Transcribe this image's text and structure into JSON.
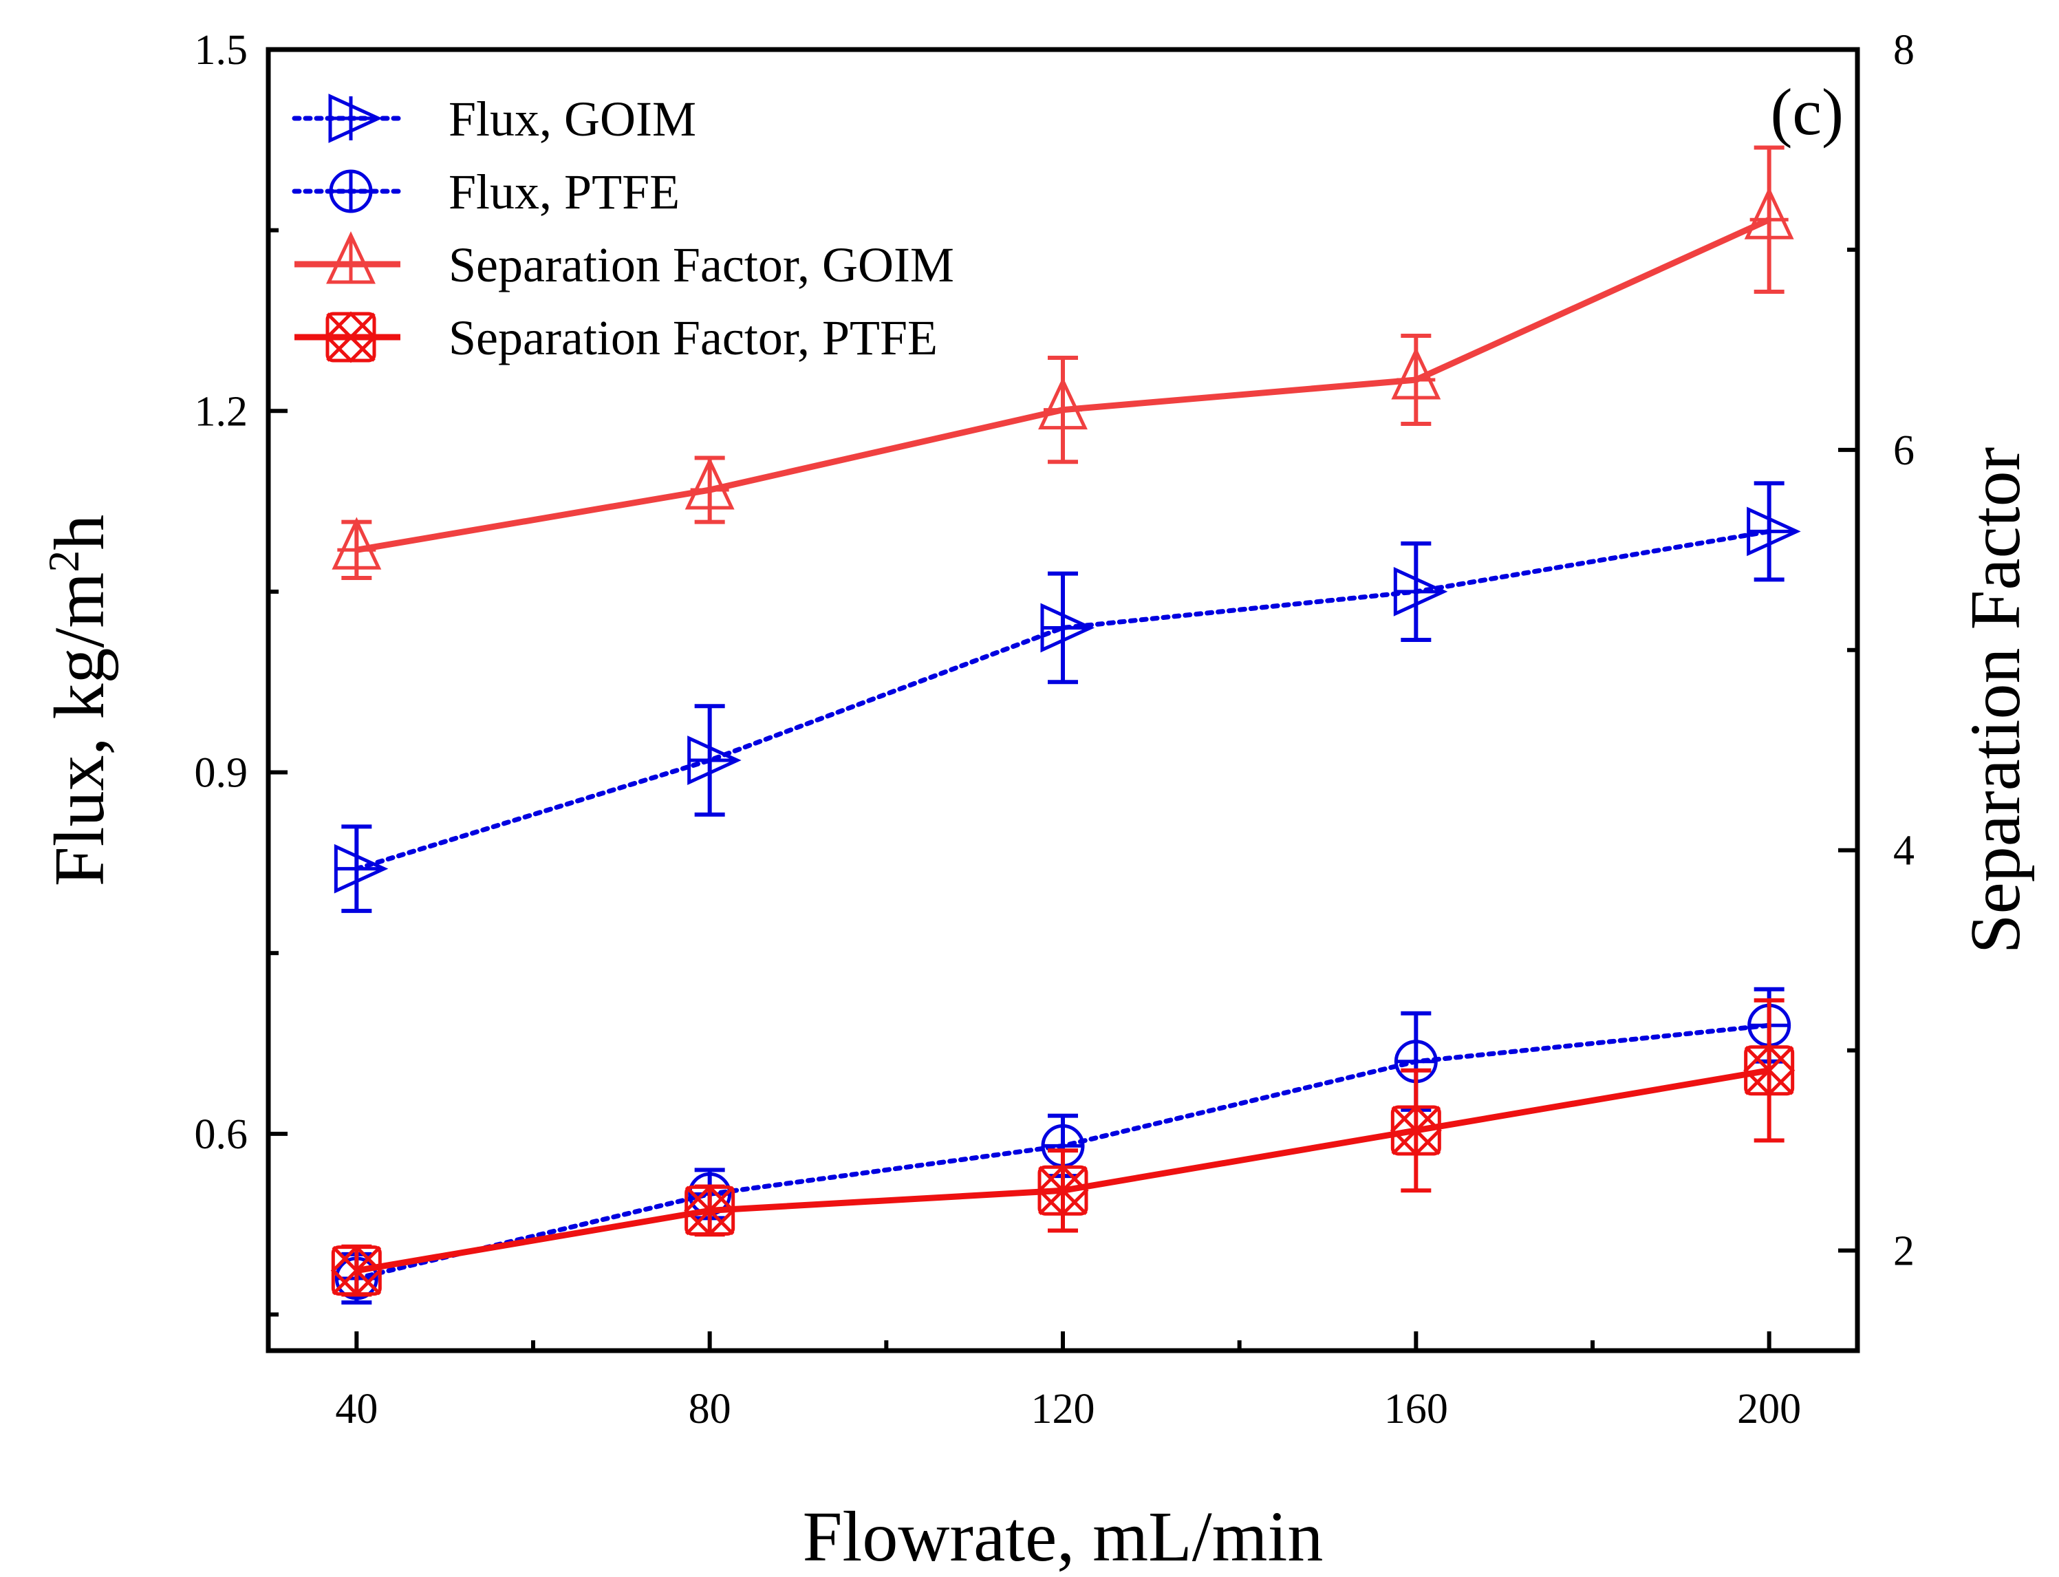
{
  "chart_data": {
    "type": "line",
    "panel_label": "(c)",
    "xlabel": "Flowrate, mL/min",
    "ylabel_left": {
      "main": "Flux, kg/m",
      "sup": "2",
      "tail": "h"
    },
    "ylabel_right": "Separation Factor",
    "xlim": [
      30,
      210
    ],
    "ylim_left": [
      0.42,
      1.5
    ],
    "ylim_right": [
      1.5,
      8
    ],
    "x_ticks": [
      40,
      80,
      120,
      160,
      200
    ],
    "x_tick_labels": [
      "40",
      "80",
      "120",
      "160",
      "200"
    ],
    "x_minor_ticks": [
      60,
      100,
      140,
      180
    ],
    "y_left_ticks": [
      0.6,
      0.9,
      1.2,
      1.5
    ],
    "y_left_tick_labels": [
      "0.6",
      "0.9",
      "1.2",
      "1.5"
    ],
    "y_left_minor_ticks": [
      0.45,
      0.75,
      1.05,
      1.35
    ],
    "y_right_ticks": [
      2,
      4,
      6,
      8
    ],
    "y_right_tick_labels": [
      "2",
      "4",
      "6",
      "8"
    ],
    "y_right_minor_ticks": [
      3,
      5,
      7
    ],
    "x": [
      40,
      80,
      120,
      160,
      200
    ],
    "series": [
      {
        "name": "Flux, GOIM",
        "axis": "left",
        "marker": "triangle-right",
        "line": "dotted",
        "color": "#0000e0",
        "values": [
          0.82,
          0.91,
          1.02,
          1.05,
          1.1
        ],
        "errors": [
          0.035,
          0.045,
          0.045,
          0.04,
          0.04
        ]
      },
      {
        "name": "Flux, PTFE",
        "axis": "left",
        "marker": "circle-plus",
        "line": "dotted",
        "color": "#0000e0",
        "values": [
          0.48,
          0.55,
          0.59,
          0.66,
          0.69
        ],
        "errors": [
          0.02,
          0.02,
          0.025,
          0.04,
          0.03
        ]
      },
      {
        "name": "Separation Factor, GOIM",
        "axis": "right",
        "marker": "triangle-up",
        "line": "solid",
        "color": "#f04040",
        "values": [
          5.5,
          5.8,
          6.2,
          6.35,
          7.15
        ],
        "errors": [
          0.14,
          0.16,
          0.26,
          0.22,
          0.36
        ]
      },
      {
        "name": "Separation Factor, PTFE",
        "axis": "right",
        "marker": "circle-x",
        "line": "solid",
        "color": "#ee1111",
        "values": [
          1.9,
          2.2,
          2.3,
          2.6,
          2.9
        ],
        "errors": [
          0.12,
          0.12,
          0.2,
          0.3,
          0.35
        ]
      }
    ]
  }
}
